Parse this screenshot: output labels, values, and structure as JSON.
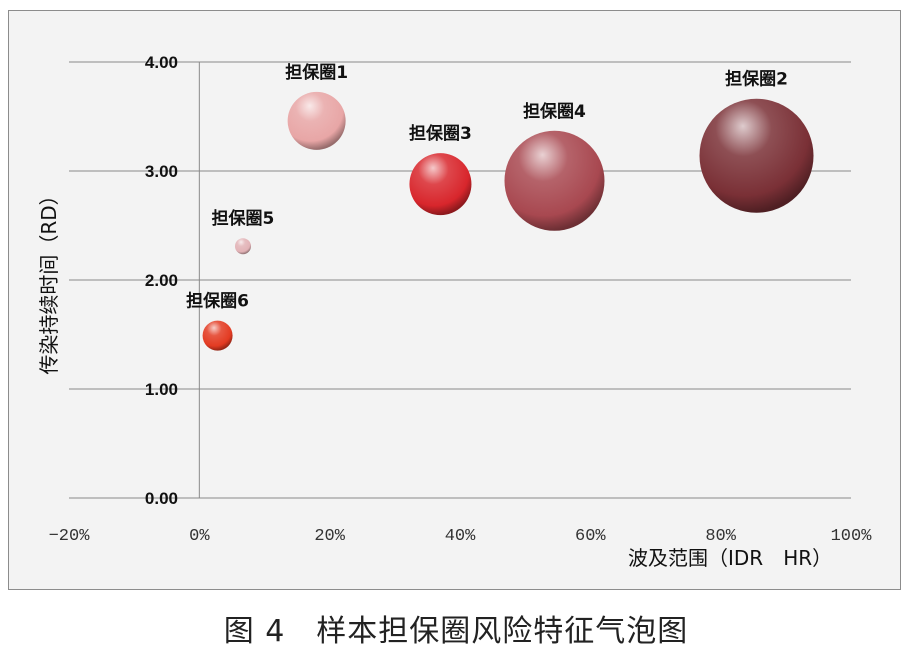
{
  "chart_data": {
    "type": "bubble",
    "caption": "图 4　样本担保圈风险特征气泡图",
    "xlabel": "波及范围（IDR　HR）",
    "ylabel": "传染持续时间（RD）",
    "xlim": [
      -0.2,
      1.0
    ],
    "ylim": [
      0,
      4
    ],
    "x_ticks": [
      -0.2,
      0,
      0.2,
      0.4,
      0.6,
      0.8,
      1.0
    ],
    "x_tick_labels": [
      "−20%",
      "0%",
      "20%",
      "40%",
      "60%",
      "80%",
      "100%"
    ],
    "y_ticks": [
      0,
      1,
      2,
      3,
      4
    ],
    "y_tick_labels": [
      "0.00",
      "1.00",
      "2.00",
      "3.00",
      "4.00"
    ],
    "grid": "horizontal",
    "series": [
      {
        "label": "担保圈1",
        "x": 0.18,
        "y": 3.46,
        "size": 29,
        "color": "#e8a6a6"
      },
      {
        "label": "担保圈2",
        "x": 0.855,
        "y": 3.14,
        "size": 57,
        "color": "#7a3036"
      },
      {
        "label": "担保圈3",
        "x": 0.37,
        "y": 2.88,
        "size": 31,
        "color": "#d8262c"
      },
      {
        "label": "担保圈4",
        "x": 0.545,
        "y": 2.91,
        "size": 50,
        "color": "#a84850"
      },
      {
        "label": "担保圈5",
        "x": 0.067,
        "y": 2.31,
        "size": 8,
        "color": "#e2b2b6"
      },
      {
        "label": "担保圈6",
        "x": 0.028,
        "y": 1.49,
        "size": 15,
        "color": "#e33b22"
      }
    ]
  }
}
